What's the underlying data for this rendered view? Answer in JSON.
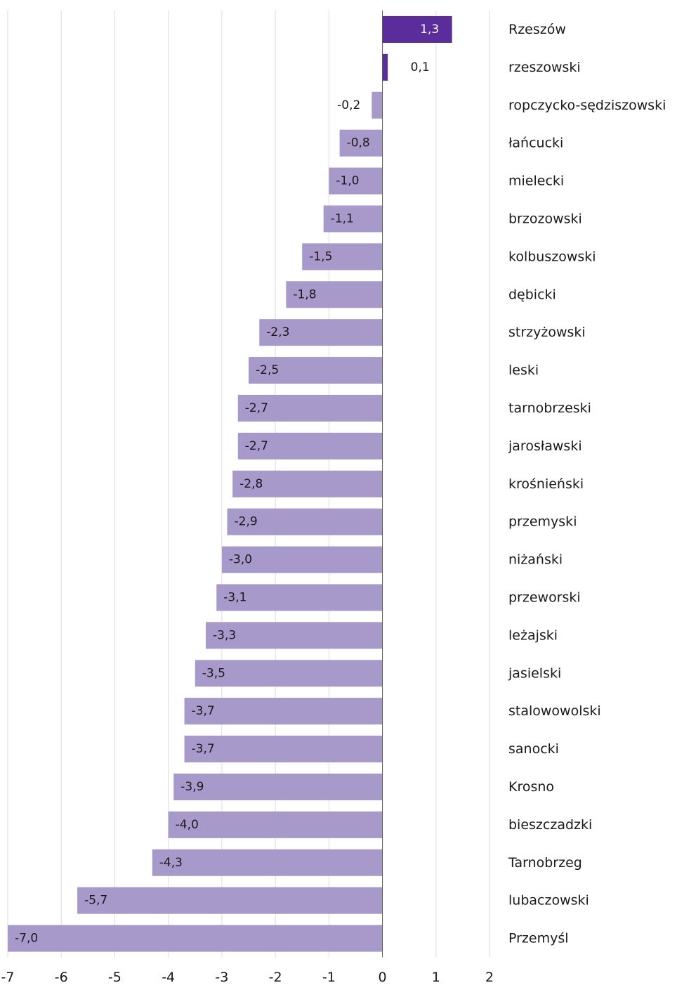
{
  "chart_data": {
    "type": "bar",
    "orientation": "horizontal",
    "categories": [
      "Rzeszów",
      "rzeszowski",
      "ropczycko-sędziszowski",
      "łańcucki",
      "mielecki",
      "brzozowski",
      "kolbuszowski",
      "dębicki",
      "strzyżowski",
      "leski",
      "tarnobrzeski",
      "jarosławski",
      "krośnieński",
      "przemyski",
      "niżański",
      "przeworski",
      "leżajski",
      "jasielski",
      "stalowowolski",
      "sanocki",
      "Krosno",
      "bieszczadzki",
      "Tarnobrzeg",
      "lubaczowski",
      "Przemyśl"
    ],
    "values": [
      1.3,
      0.1,
      -0.2,
      -0.8,
      -1.0,
      -1.1,
      -1.5,
      -1.8,
      -2.3,
      -2.5,
      -2.7,
      -2.7,
      -2.8,
      -2.9,
      -3.0,
      -3.1,
      -3.3,
      -3.5,
      -3.7,
      -3.7,
      -3.9,
      -4.0,
      -4.3,
      -5.7,
      -7.0
    ],
    "value_labels": [
      "1,3",
      "0,1",
      "-0,2",
      "-0,8",
      "-1,0",
      "-1,1",
      "-1,5",
      "-1,8",
      "-2,3",
      "-2,5",
      "-2,7",
      "-2,7",
      "-2,8",
      "-2,9",
      "-3,0",
      "-3,1",
      "-3,3",
      "-3,5",
      "-3,7",
      "-3,7",
      "-3,9",
      "-4,0",
      "-4,3",
      "-5,7",
      "-7,0"
    ],
    "x_ticks": [
      "-7",
      "-6",
      "-5",
      "-4",
      "-3",
      "-2",
      "-1",
      "0",
      "1",
      "2"
    ],
    "xlim": [
      -7,
      2
    ],
    "title": "",
    "xlabel": "",
    "ylabel": "",
    "grid": true,
    "legend": "none",
    "colors": {
      "positive": "#5b2d9c",
      "negative": "#a899cb",
      "grid": "#dcdcdc",
      "axis": "#555555",
      "text": "#1a1a1a",
      "label_on_dark": "#ffffff"
    }
  }
}
